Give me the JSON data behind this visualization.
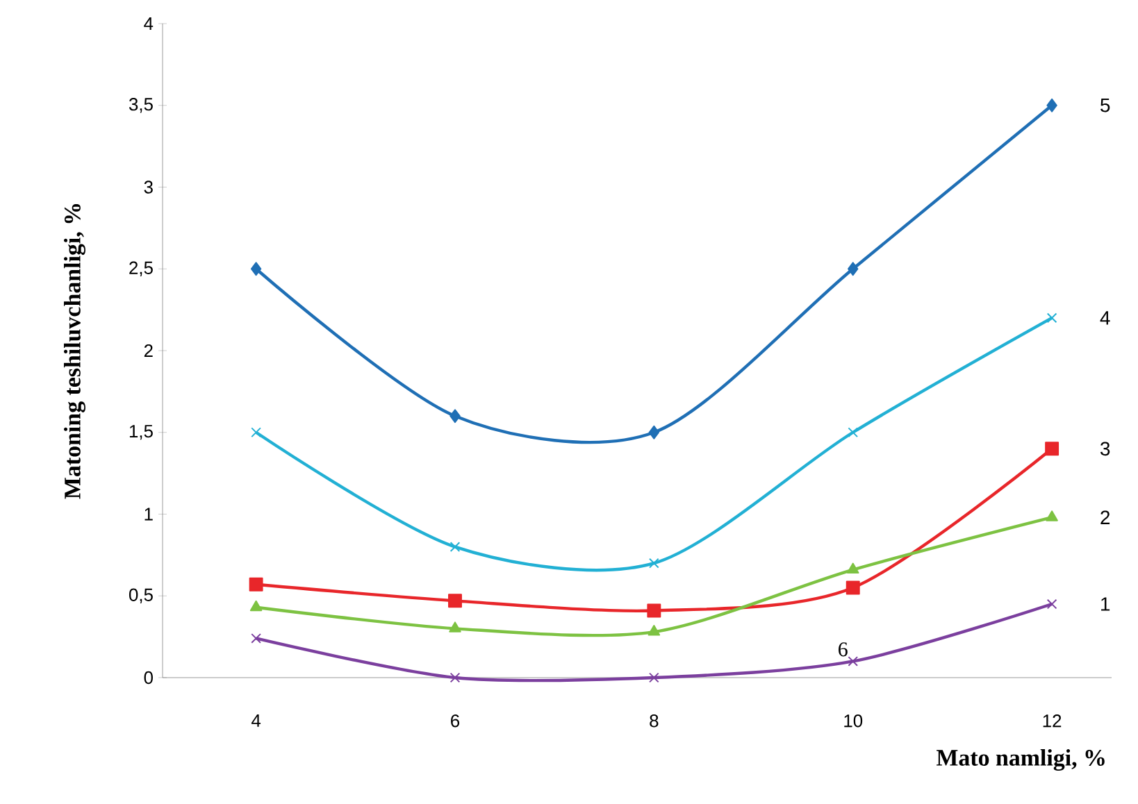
{
  "chart_data": {
    "type": "line",
    "xlabel": "Mato namligi, %",
    "ylabel": "Matoning teshiluvchanligi, %",
    "categories": [
      "4",
      "6",
      "8",
      "10",
      "12"
    ],
    "ylim": [
      0,
      4
    ],
    "yticks": [
      0,
      {
        "value": 0.5,
        "label": "0,5"
      },
      1,
      {
        "value": 1.5,
        "label": "1,5"
      },
      2,
      {
        "value": 2.5,
        "label": "2,5"
      },
      3,
      {
        "value": 3.5,
        "label": "3,5"
      },
      4
    ],
    "grid": false,
    "legend": false,
    "series": [
      {
        "name": "5",
        "color": "#1f6fb5",
        "marker": "diamond",
        "values": [
          2.5,
          1.6,
          1.5,
          2.5,
          3.5
        ]
      },
      {
        "name": "4",
        "color": "#22b0d4",
        "marker": "cross",
        "values": [
          1.5,
          0.8,
          0.7,
          1.5,
          2.2
        ]
      },
      {
        "name": "3",
        "color": "#e8262a",
        "marker": "square",
        "values": [
          0.57,
          0.47,
          0.41,
          0.55,
          1.4
        ]
      },
      {
        "name": "2",
        "color": "#7dc242",
        "marker": "triangle",
        "values": [
          0.43,
          0.3,
          0.28,
          0.66,
          0.98
        ]
      },
      {
        "name": "1",
        "color": "#7b3f9e",
        "marker": "cross",
        "values": [
          0.24,
          0,
          0,
          0.1,
          0.45
        ]
      }
    ],
    "annotations": [
      {
        "text": "6",
        "x": "10",
        "y": 0.1
      }
    ]
  }
}
